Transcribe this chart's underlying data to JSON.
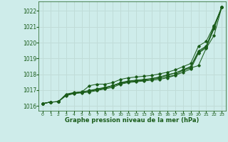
{
  "xlabel": "Graphe pression niveau de la mer (hPa)",
  "bg_color": "#ceecea",
  "grid_color": "#c0dcd8",
  "line_color": "#1a5c1a",
  "xlim": [
    -0.5,
    23.5
  ],
  "ylim": [
    1015.7,
    1022.6
  ],
  "yticks": [
    1016,
    1017,
    1018,
    1019,
    1020,
    1021,
    1022
  ],
  "xticks": [
    0,
    1,
    2,
    3,
    4,
    5,
    6,
    7,
    8,
    9,
    10,
    11,
    12,
    13,
    14,
    15,
    16,
    17,
    18,
    19,
    20,
    21,
    22,
    23
  ],
  "series": [
    [
      1016.15,
      1016.25,
      1016.27,
      1016.75,
      1016.85,
      1016.9,
      1016.95,
      1017.05,
      1017.15,
      1017.3,
      1017.45,
      1017.55,
      1017.6,
      1017.65,
      1017.7,
      1017.75,
      1017.85,
      1017.95,
      1018.25,
      1018.4,
      1018.55,
      1019.65,
      1020.45,
      1022.25
    ],
    [
      1016.15,
      1016.25,
      1016.27,
      1016.7,
      1016.82,
      1016.88,
      1016.93,
      1017.02,
      1017.12,
      1017.27,
      1017.42,
      1017.52,
      1017.57,
      1017.62,
      1017.72,
      1017.82,
      1017.98,
      1018.08,
      1018.28,
      1018.48,
      1019.48,
      1019.78,
      1021.03,
      1022.25
    ],
    [
      1016.15,
      1016.25,
      1016.27,
      1016.7,
      1016.82,
      1016.88,
      1016.98,
      1017.08,
      1017.18,
      1017.28,
      1017.48,
      1017.58,
      1017.63,
      1017.68,
      1017.73,
      1017.83,
      1017.93,
      1018.08,
      1018.28,
      1018.48,
      1019.38,
      1019.75,
      1020.98,
      1022.25
    ],
    [
      1016.15,
      1016.25,
      1016.27,
      1016.65,
      1016.78,
      1016.83,
      1016.88,
      1016.98,
      1017.08,
      1017.18,
      1017.38,
      1017.48,
      1017.53,
      1017.58,
      1017.63,
      1017.68,
      1017.78,
      1017.93,
      1018.13,
      1018.33,
      1019.33,
      1019.68,
      1020.88,
      1022.25
    ],
    [
      1016.15,
      1016.25,
      1016.27,
      1016.7,
      1016.82,
      1016.88,
      1017.28,
      1017.38,
      1017.38,
      1017.48,
      1017.68,
      1017.78,
      1017.83,
      1017.88,
      1017.93,
      1018.03,
      1018.13,
      1018.28,
      1018.48,
      1018.68,
      1019.78,
      1020.08,
      1021.08,
      1022.25
    ]
  ]
}
